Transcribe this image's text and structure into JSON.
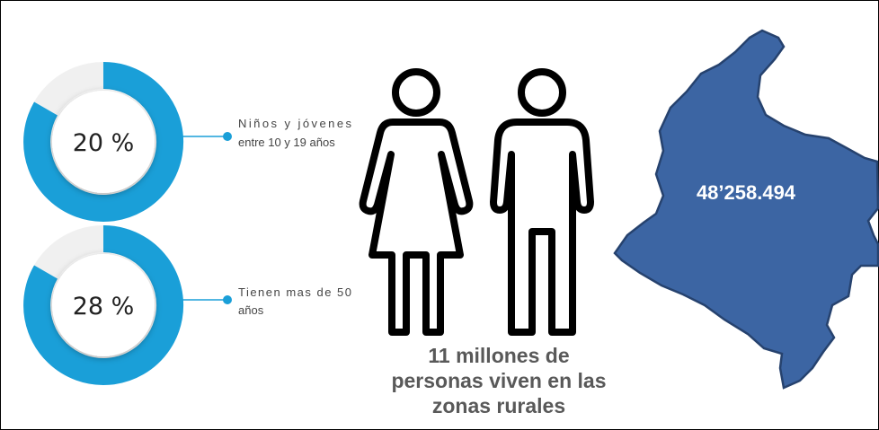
{
  "stats": [
    {
      "label": "20 %",
      "caption": [
        "Niños y jóvenes",
        "entre 10 y 19 años"
      ]
    },
    {
      "label": "28 %",
      "caption": [
        "Tienen mas de 50",
        "años"
      ]
    }
  ],
  "rural": [
    "11 millones de",
    "personas viven en las",
    "zonas rurales"
  ],
  "population": "48’258.494"
}
